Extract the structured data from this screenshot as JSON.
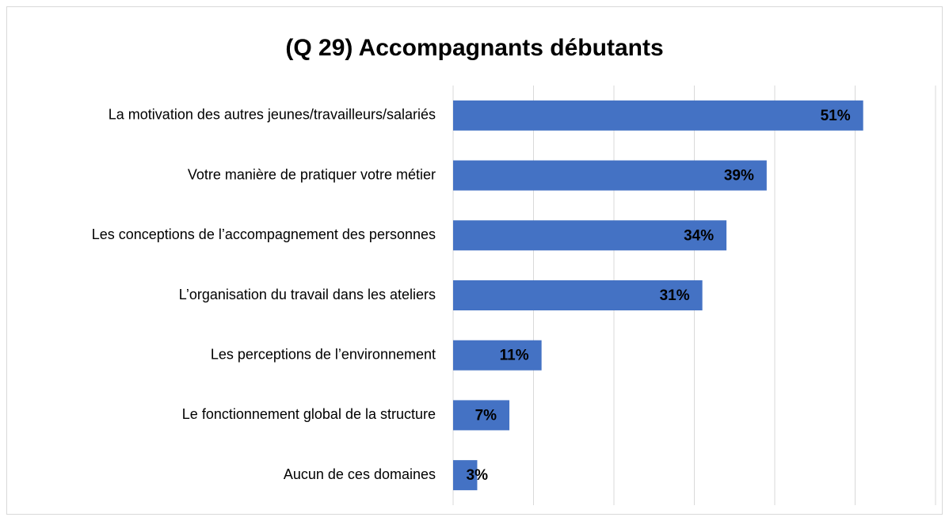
{
  "chart_data": {
    "type": "bar",
    "orientation": "horizontal",
    "title": "(Q 29) Accompagnants débutants",
    "categories": [
      "La motivation des autres jeunes/travailleurs/salariés",
      "Votre manière de pratiquer votre métier",
      "Les conceptions de l’accompagnement des personnes",
      "L’organisation du travail dans les ateliers",
      "Les perceptions de l’environnement",
      "Le fonctionnement global de la structure",
      "Aucun de ces domaines"
    ],
    "values": [
      51,
      39,
      34,
      31,
      11,
      7,
      3
    ],
    "value_labels": [
      "51%",
      "39%",
      "34%",
      "31%",
      "11%",
      "7%",
      "3%"
    ],
    "color": "#4472c4",
    "xlim": [
      0,
      60
    ],
    "xticks": [
      0,
      10,
      20,
      30,
      40,
      50,
      60
    ],
    "grid": true
  }
}
